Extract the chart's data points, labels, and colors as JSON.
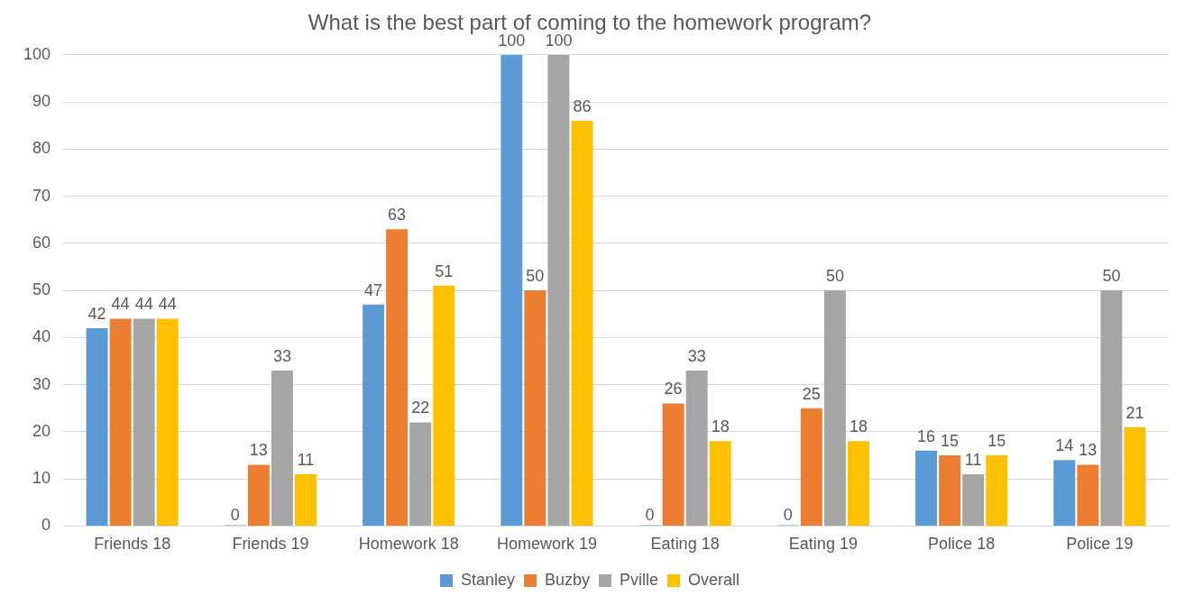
{
  "chart_data": {
    "type": "bar",
    "title": "What is the best part of coming to the homework program?",
    "categories": [
      "Friends 18",
      "Friends 19",
      "Homework 18",
      "Homework 19",
      "Eating 18",
      "Eating 19",
      "Police 18",
      "Police 19"
    ],
    "series": [
      {
        "name": "Stanley",
        "color": "#5b9bd5",
        "values": [
          42,
          0,
          47,
          100,
          0,
          0,
          16,
          14
        ]
      },
      {
        "name": "Buzby",
        "color": "#ed7d31",
        "values": [
          44,
          13,
          63,
          50,
          26,
          25,
          15,
          13
        ]
      },
      {
        "name": "Pville",
        "color": "#a5a5a5",
        "values": [
          44,
          33,
          22,
          100,
          33,
          50,
          11,
          50
        ]
      },
      {
        "name": "Overall",
        "color": "#ffc000",
        "values": [
          44,
          11,
          51,
          86,
          18,
          18,
          15,
          21
        ]
      }
    ],
    "ylim": [
      0,
      100
    ],
    "yticks": [
      0,
      10,
      20,
      30,
      40,
      50,
      60,
      70,
      80,
      90,
      100
    ],
    "grid": "y",
    "legend": "bottom",
    "data_labels": true
  }
}
